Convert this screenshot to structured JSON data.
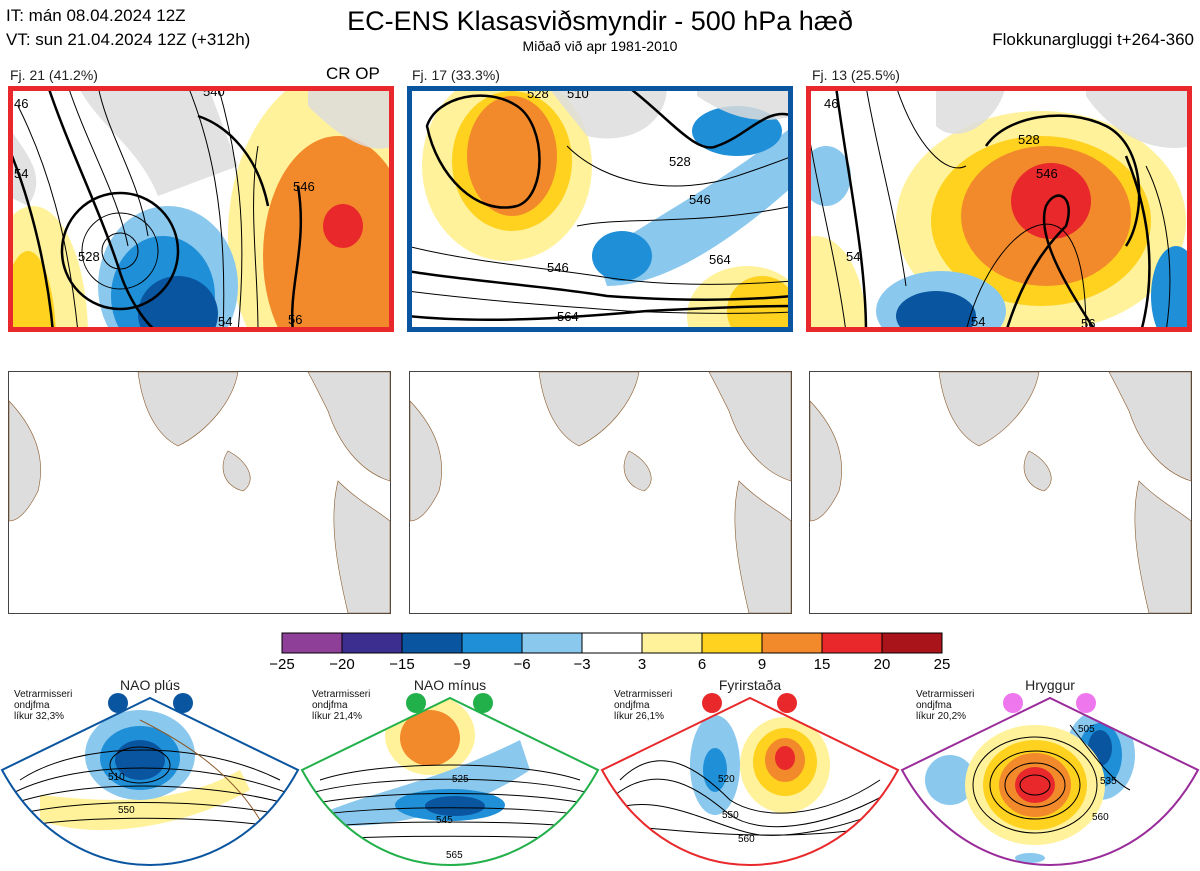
{
  "header": {
    "it_line": "IT: mán 08.04.2024 12Z",
    "vt_line": "VT: sun 21.04.2024 12Z  (+312h)",
    "title": "EC-ENS Klasasviðsmyndir - 500 hPa hæð",
    "subtitle": "Miðað við apr 1981-2010",
    "window": "Flokkunargluggi t+264-360"
  },
  "panels": [
    {
      "label": "Fj. 21 (41.2%)",
      "extra": "CR OP",
      "border": "#e8282a"
    },
    {
      "label": "Fj. 17 (33.3%)",
      "extra": "",
      "border": "#0a55a0"
    },
    {
      "label": "Fj. 13 (25.5%)",
      "extra": "",
      "border": "#e8282a"
    }
  ],
  "contour_labels": {
    "p1": [
      "46",
      "54",
      "528",
      "540",
      "546",
      "54",
      "56"
    ],
    "p2": [
      "528",
      "546",
      "564",
      "546",
      "564",
      "528",
      "510"
    ],
    "p3": [
      "46",
      "528",
      "546",
      "54",
      "56",
      "54"
    ]
  },
  "colorbar": {
    "ticks": [
      "−25",
      "−20",
      "−15",
      "−9",
      "−6",
      "−3",
      "3",
      "6",
      "9",
      "15",
      "20",
      "25"
    ],
    "colors": [
      "#8e3f97",
      "#3b2e8e",
      "#0a55a0",
      "#1f8fd8",
      "#8ac8ee",
      "#ffffff",
      "#fff29a",
      "#ffd21f",
      "#f28a2c",
      "#e8282a",
      "#a8141a"
    ]
  },
  "regimes": [
    {
      "name": "NAO plús",
      "line1": "Vetrarmisseri",
      "line2": "ondjfma",
      "line3": "líkur 32,3%",
      "dot": "#0a55a0",
      "labels": [
        "510",
        "550"
      ]
    },
    {
      "name": "NAO mínus",
      "line1": "Vetrarmisseri",
      "line2": "ondjfma",
      "line3": "líkur 21,4%",
      "dot": "#22b04a",
      "labels": [
        "525",
        "545",
        "565"
      ]
    },
    {
      "name": "Fyrirstaða",
      "line1": "Vetrarmisseri",
      "line2": "ondjfma",
      "line3": "líkur 26,1%",
      "dot": "#e8282a",
      "labels": [
        "520",
        "550",
        "560"
      ]
    },
    {
      "name": "Hryggur",
      "line1": "Vetrarmisseri",
      "line2": "ondjfma",
      "line3": "líkur 20,2%",
      "dot": "#ee77ee",
      "labels": [
        "505",
        "535",
        "560"
      ]
    }
  ]
}
